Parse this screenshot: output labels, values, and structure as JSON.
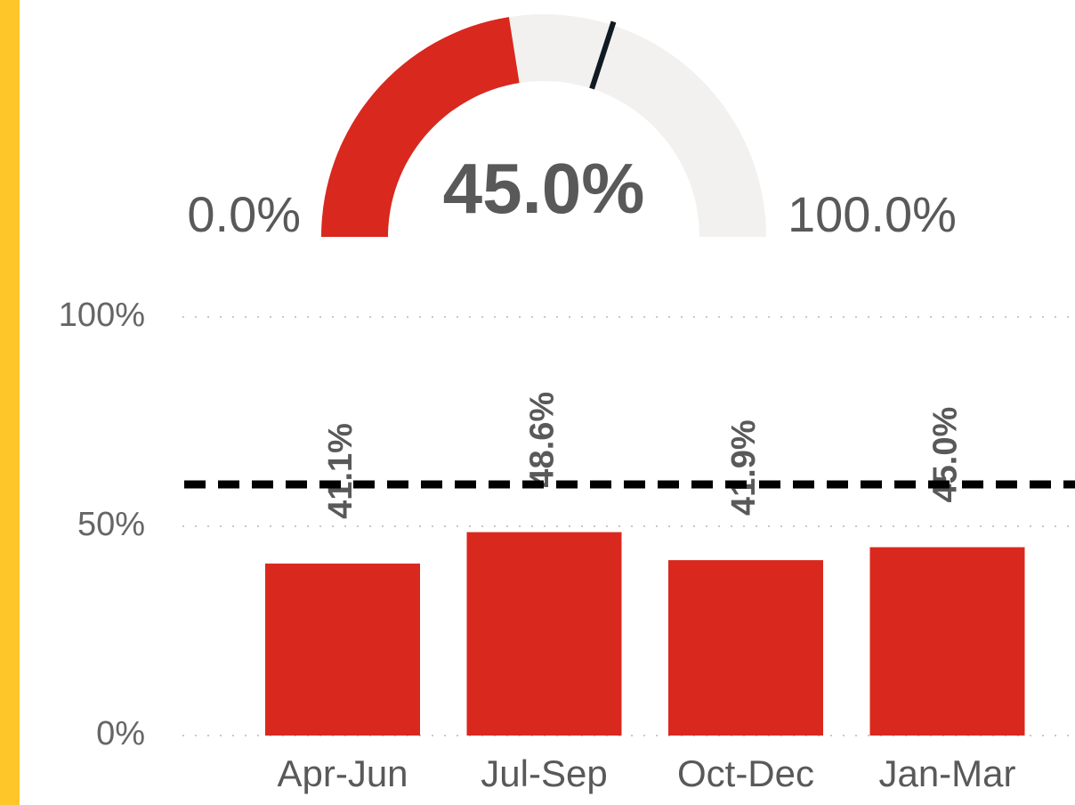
{
  "chart_data": [
    {
      "type": "gauge",
      "value": 45.0,
      "value_label": "45.0%",
      "min": 0,
      "max": 100,
      "min_label": "0.0%",
      "max_label": "100.0%",
      "target": 60,
      "color": "#d9281e",
      "track_color": "#f2f1ef",
      "target_color": "#111a22"
    },
    {
      "type": "bar",
      "categories": [
        "Apr-Jun",
        "Jul-Sep",
        "Oct-Dec",
        "Jan-Mar"
      ],
      "values": [
        41.1,
        48.6,
        41.9,
        45.0
      ],
      "value_labels": [
        "41.1%",
        "48.6%",
        "41.9%",
        "45.0%"
      ],
      "color": "#d9281e",
      "ylim": [
        0,
        100
      ],
      "yticks": [
        {
          "value": 0,
          "label": "0%"
        },
        {
          "value": 50,
          "label": "50%"
        },
        {
          "value": 100,
          "label": "100%"
        }
      ],
      "grid": true,
      "target": 60
    }
  ]
}
